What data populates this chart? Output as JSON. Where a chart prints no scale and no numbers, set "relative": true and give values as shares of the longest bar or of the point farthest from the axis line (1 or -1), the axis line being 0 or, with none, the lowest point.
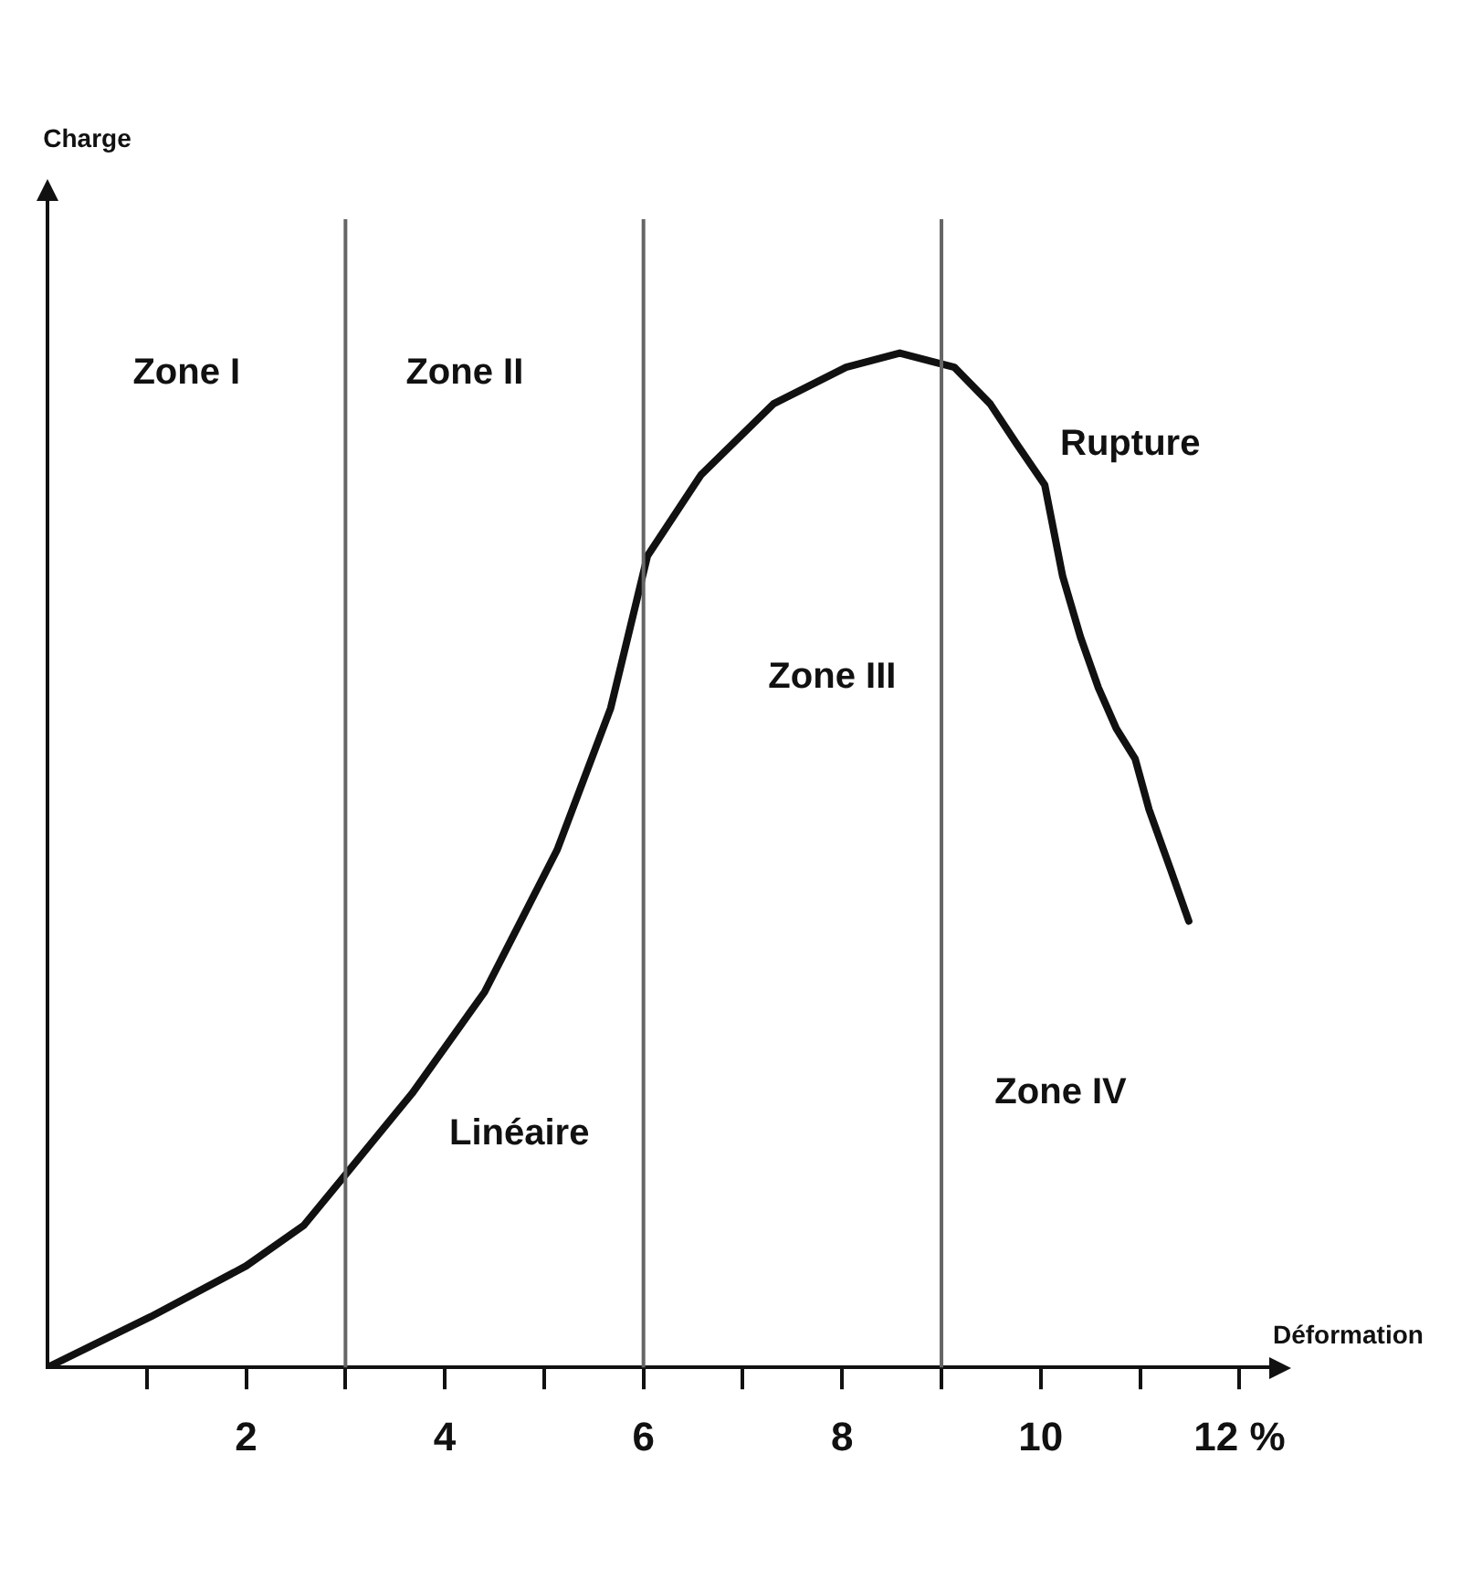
{
  "chart_data": {
    "type": "line",
    "xlabel": "Déformation",
    "relative": true,
    "x": [
      0,
      1.04,
      2,
      2.58,
      3,
      3.67,
      4.4,
      5.13,
      5.67,
      6.04,
      6.58,
      7.31,
      8.04,
      8.58,
      9.13,
      9.49,
      9.76,
      10.04,
      10.22,
      10.4,
      10.58,
      10.76,
      10.95,
      11.09,
      11.31,
      11.49
    ],
    "series": [
      {
        "color": "#111111",
        "values": [
          0,
          0.05,
          0.1,
          0.14,
          0.19,
          0.27,
          0.37,
          0.51,
          0.65,
          0.8,
          0.88,
          0.95,
          0.986,
          1,
          0.986,
          0.95,
          0.91,
          0.87,
          0.78,
          0.72,
          0.67,
          0.63,
          0.6,
          0.55,
          0.49,
          0.44
        ]
      }
    ],
    "xlim": [
      0,
      12.3
    ],
    "xticks": [
      {
        "value": 1,
        "label": null
      },
      2,
      {
        "value": 3,
        "label": null
      },
      4,
      {
        "value": 5,
        "label": null
      },
      6,
      {
        "value": 7,
        "label": null
      },
      8,
      {
        "value": 9,
        "label": null
      },
      10,
      {
        "value": 11,
        "label": null
      },
      {
        "value": 12,
        "label": "12 %"
      }
    ],
    "ref_lines": [
      {
        "axis": "x",
        "value": 3,
        "color": "#666666"
      },
      {
        "axis": "x",
        "value": 6,
        "color": "#666666"
      },
      {
        "axis": "x",
        "value": 9,
        "color": "#666666"
      }
    ],
    "annotations": [
      "Zone I",
      "Zone II",
      "Zone III",
      "Zone IV",
      "Linéaire",
      "Rupture",
      "Charge"
    ],
    "grid": false,
    "legend": false,
    "marker": "none",
    "line_style": "solid"
  }
}
